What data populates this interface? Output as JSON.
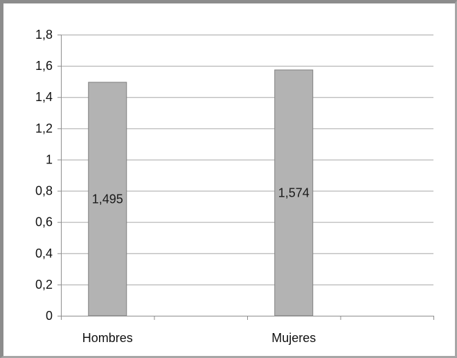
{
  "chart_data": {
    "type": "bar",
    "categories": [
      "Hombres",
      "Mujeres"
    ],
    "values": [
      1.495,
      1.574
    ],
    "data_labels": [
      "1,495",
      "1,574"
    ],
    "y_ticks": [
      0,
      0.2,
      0.4,
      0.6,
      0.8,
      1.0,
      1.2,
      1.4,
      1.6,
      1.8
    ],
    "y_tick_labels": [
      "0",
      "0,2",
      "0,4",
      "0,6",
      "0,8",
      "1",
      "1,2",
      "1,4",
      "1,6",
      "1,8"
    ],
    "ylim": [
      0,
      1.8
    ],
    "title": "",
    "xlabel": "",
    "ylabel": "",
    "grid": true,
    "legend": "none",
    "colors": {
      "bar_fill": "#b3b3b3",
      "bar_stroke": "#7f7f7f",
      "gridline": "#a6a6a6",
      "axis": "#8c8c8c",
      "frame": "#8c8c8c"
    }
  }
}
